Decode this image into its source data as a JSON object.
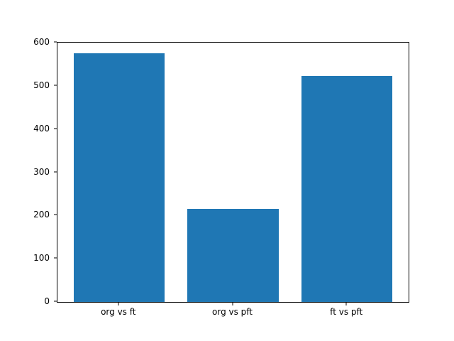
{
  "chart_data": {
    "type": "bar",
    "title": "",
    "categories": [
      "org vs ft",
      "org vs pft",
      "ft vs pft"
    ],
    "values": [
      575,
      215,
      522
    ],
    "xlabel": "",
    "ylabel": "",
    "ylim": [
      0,
      600
    ],
    "yticks": [
      0,
      100,
      200,
      300,
      400,
      500,
      600
    ],
    "bar_color": "#1f77b4",
    "axis_color": "#000000",
    "background_color": "#ffffff",
    "grid": false,
    "legend": "none"
  }
}
